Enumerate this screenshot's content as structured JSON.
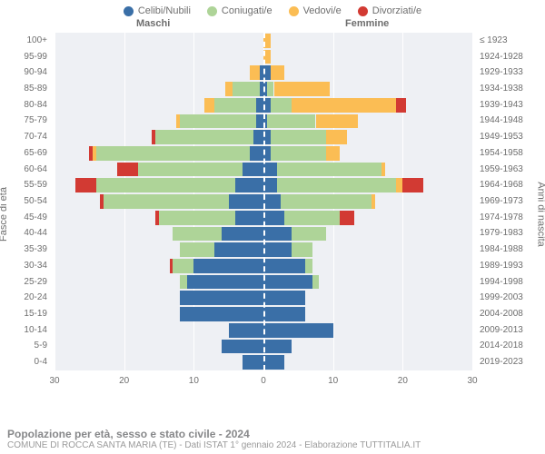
{
  "type": "population_pyramid",
  "legend": [
    {
      "label": "Celibi/Nubili",
      "color": "#3a6fa7"
    },
    {
      "label": "Coniugati/e",
      "color": "#aed498"
    },
    {
      "label": "Vedovi/e",
      "color": "#fbbd54"
    },
    {
      "label": "Divorziati/e",
      "color": "#d23a33"
    }
  ],
  "header_male": "Maschi",
  "header_female": "Femmine",
  "axis_left_title": "Fasce di età",
  "axis_right_title": "Anni di nascita",
  "age_groups": [
    "100+",
    "95-99",
    "90-94",
    "85-89",
    "80-84",
    "75-79",
    "70-74",
    "65-69",
    "60-64",
    "55-59",
    "50-54",
    "45-49",
    "40-44",
    "35-39",
    "30-34",
    "25-29",
    "20-24",
    "15-19",
    "10-14",
    "5-9",
    "0-4"
  ],
  "birth_years": [
    "≤ 1923",
    "1924-1928",
    "1929-1933",
    "1934-1938",
    "1939-1943",
    "1944-1948",
    "1949-1953",
    "1954-1958",
    "1959-1963",
    "1964-1968",
    "1969-1973",
    "1974-1978",
    "1979-1983",
    "1984-1988",
    "1989-1993",
    "1994-1998",
    "1999-2003",
    "2004-2008",
    "2009-2013",
    "2014-2018",
    "2019-2023"
  ],
  "xlim": 30,
  "xticks": [
    -30,
    -20,
    -10,
    0,
    10,
    20,
    30
  ],
  "xtick_labels": [
    "30",
    "20",
    "10",
    "0",
    "10",
    "20",
    "30"
  ],
  "colors": {
    "celibi": "#3a6fa7",
    "coniugati": "#aed498",
    "vedovi": "#fbbd54",
    "divorziati": "#d23a33",
    "plot_bg": "#eef0f4",
    "grid": "#ffffff",
    "text": "#6e6e6e"
  },
  "male": [
    {
      "c": 0,
      "m": 0,
      "v": 0,
      "d": 0
    },
    {
      "c": 0,
      "m": 0,
      "v": 0,
      "d": 0
    },
    {
      "c": 0.5,
      "m": 0,
      "v": 1.5,
      "d": 0
    },
    {
      "c": 0.5,
      "m": 4,
      "v": 1,
      "d": 0
    },
    {
      "c": 1,
      "m": 6,
      "v": 1.5,
      "d": 0
    },
    {
      "c": 1,
      "m": 11,
      "v": 0.5,
      "d": 0
    },
    {
      "c": 1.5,
      "m": 14,
      "v": 0,
      "d": 0.5
    },
    {
      "c": 2,
      "m": 22,
      "v": 0.5,
      "d": 0.5
    },
    {
      "c": 3,
      "m": 15,
      "v": 0,
      "d": 3
    },
    {
      "c": 4,
      "m": 20,
      "v": 0,
      "d": 3
    },
    {
      "c": 5,
      "m": 18,
      "v": 0,
      "d": 0.5
    },
    {
      "c": 4,
      "m": 11,
      "v": 0,
      "d": 0.5
    },
    {
      "c": 6,
      "m": 7,
      "v": 0,
      "d": 0
    },
    {
      "c": 7,
      "m": 5,
      "v": 0,
      "d": 0
    },
    {
      "c": 10,
      "m": 3,
      "v": 0,
      "d": 0.5
    },
    {
      "c": 11,
      "m": 1,
      "v": 0,
      "d": 0
    },
    {
      "c": 12,
      "m": 0,
      "v": 0,
      "d": 0
    },
    {
      "c": 12,
      "m": 0,
      "v": 0,
      "d": 0
    },
    {
      "c": 5,
      "m": 0,
      "v": 0,
      "d": 0
    },
    {
      "c": 6,
      "m": 0,
      "v": 0,
      "d": 0
    },
    {
      "c": 3,
      "m": 0,
      "v": 0,
      "d": 0
    }
  ],
  "female": [
    {
      "c": 0,
      "m": 0,
      "v": 1,
      "d": 0
    },
    {
      "c": 0,
      "m": 0,
      "v": 1,
      "d": 0
    },
    {
      "c": 1,
      "m": 0,
      "v": 2,
      "d": 0
    },
    {
      "c": 0.5,
      "m": 1,
      "v": 8,
      "d": 0
    },
    {
      "c": 1,
      "m": 3,
      "v": 15,
      "d": 1.5
    },
    {
      "c": 0.5,
      "m": 7,
      "v": 6,
      "d": 0
    },
    {
      "c": 1,
      "m": 8,
      "v": 3,
      "d": 0
    },
    {
      "c": 1,
      "m": 8,
      "v": 2,
      "d": 0
    },
    {
      "c": 2,
      "m": 15,
      "v": 0.5,
      "d": 0
    },
    {
      "c": 2,
      "m": 17,
      "v": 1,
      "d": 3
    },
    {
      "c": 2.5,
      "m": 13,
      "v": 0.5,
      "d": 0
    },
    {
      "c": 3,
      "m": 8,
      "v": 0,
      "d": 2
    },
    {
      "c": 4,
      "m": 5,
      "v": 0,
      "d": 0
    },
    {
      "c": 4,
      "m": 3,
      "v": 0,
      "d": 0
    },
    {
      "c": 6,
      "m": 1,
      "v": 0,
      "d": 0
    },
    {
      "c": 7,
      "m": 1,
      "v": 0,
      "d": 0
    },
    {
      "c": 6,
      "m": 0,
      "v": 0,
      "d": 0
    },
    {
      "c": 6,
      "m": 0,
      "v": 0,
      "d": 0
    },
    {
      "c": 10,
      "m": 0,
      "v": 0,
      "d": 0
    },
    {
      "c": 4,
      "m": 0,
      "v": 0,
      "d": 0
    },
    {
      "c": 3,
      "m": 0,
      "v": 0,
      "d": 0
    }
  ],
  "footer_title": "Popolazione per età, sesso e stato civile - 2024",
  "footer_sub": "COMUNE DI ROCCA SANTA MARIA (TE) - Dati ISTAT 1° gennaio 2024 - Elaborazione TUTTITALIA.IT"
}
